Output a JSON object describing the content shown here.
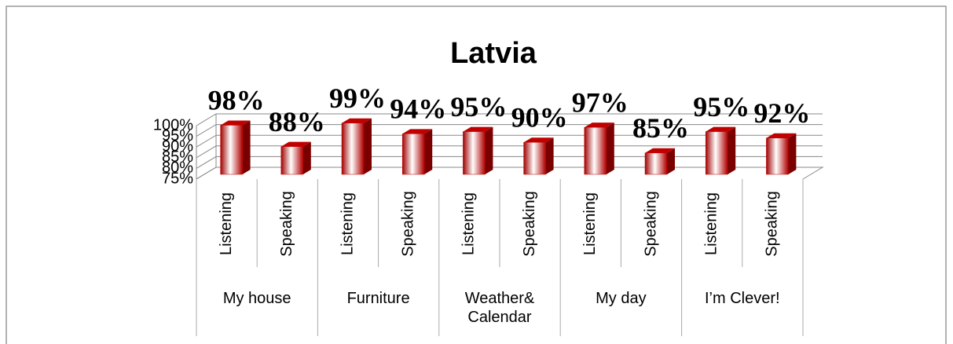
{
  "chart_data": {
    "type": "bar3d",
    "title": "Latvia",
    "categories": [
      "Listening",
      "Speaking",
      "Listening",
      "Speaking",
      "Listening",
      "Speaking",
      "Listening",
      "Speaking",
      "Listening",
      "Speaking"
    ],
    "groups": [
      "My house",
      "Furniture",
      "Weather& Calendar",
      "My day",
      "I’m Clever!"
    ],
    "values": [
      98,
      88,
      99,
      94,
      95,
      90,
      97,
      85,
      95,
      92
    ],
    "value_labels": [
      "98%",
      "88%",
      "99%",
      "94%",
      "95%",
      "90%",
      "97%",
      "85%",
      "95%",
      "92%"
    ],
    "color": "#c00000",
    "ylim": [
      75,
      100
    ],
    "yticks": [
      {
        "value": 75,
        "label": "75%"
      },
      {
        "value": 80,
        "label": "80%"
      },
      {
        "value": 85,
        "label": "85%"
      },
      {
        "value": 90,
        "label": "90%"
      },
      {
        "value": 95,
        "label": "95%"
      },
      {
        "value": 100,
        "label": "100%"
      }
    ],
    "grid": true
  }
}
